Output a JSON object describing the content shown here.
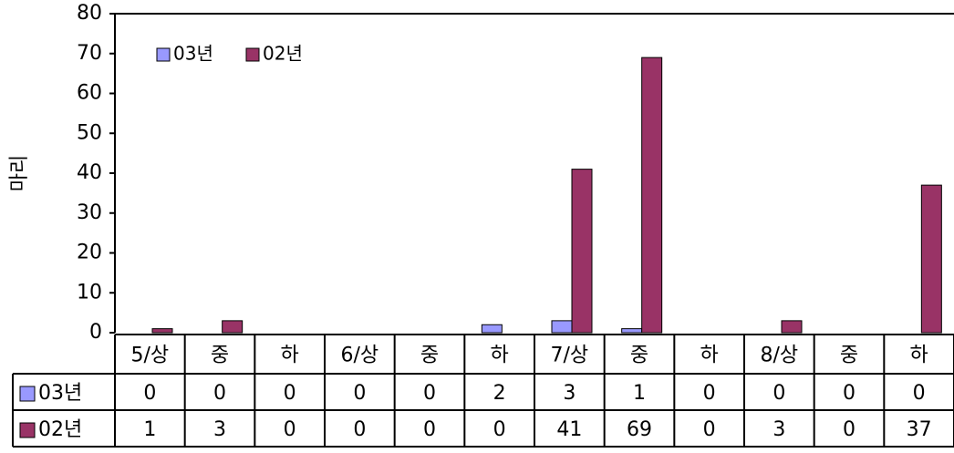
{
  "chart_data": {
    "type": "bar",
    "y_label": "마리",
    "categories": [
      "5/상",
      "중",
      "하",
      "6/상",
      "중",
      "하",
      "7/상",
      "중",
      "하",
      "8/상",
      "중",
      "하"
    ],
    "series": [
      {
        "name": "03년",
        "color": "#9999ff",
        "values": [
          0,
          0,
          0,
          0,
          0,
          2,
          3,
          1,
          0,
          0,
          0,
          0
        ]
      },
      {
        "name": "02년",
        "color": "#993366",
        "values": [
          1,
          3,
          0,
          0,
          0,
          0,
          41,
          69,
          0,
          3,
          0,
          37
        ]
      }
    ],
    "ylim": [
      0,
      80
    ],
    "yticks": [
      0,
      10,
      20,
      30,
      40,
      50,
      60,
      70,
      80
    ],
    "legend": "top-left"
  }
}
